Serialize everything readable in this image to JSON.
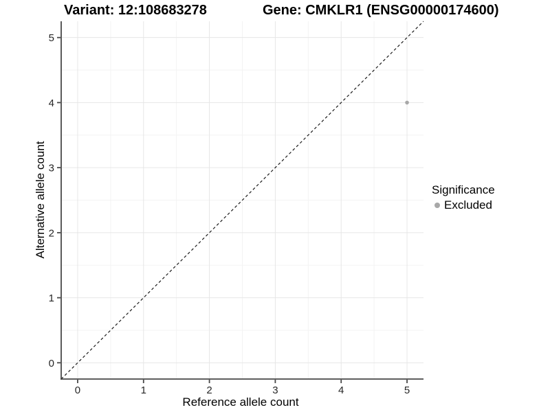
{
  "header": {
    "variant_title": "Variant: 12:108683278",
    "gene_title": "Gene: CMKLR1 (ENSG00000174600)"
  },
  "chart_data": {
    "type": "scatter",
    "xlabel": "Reference allele count",
    "ylabel": "Alternative allele count",
    "xlim": [
      -0.25,
      5.25
    ],
    "ylim": [
      -0.25,
      5.25
    ],
    "xticks": [
      0,
      1,
      2,
      3,
      4,
      5
    ],
    "yticks": [
      0,
      1,
      2,
      3,
      4,
      5
    ],
    "grid": {
      "major": true,
      "minor": true
    },
    "identity_line": {
      "show": true,
      "style": "dashed",
      "equation": "y = x"
    },
    "series": [
      {
        "name": "Excluded",
        "color": "#a8a8a8",
        "points": [
          {
            "x": 5,
            "y": 4
          }
        ]
      }
    ],
    "legend": {
      "title": "Significance",
      "position": "right",
      "entries": [
        {
          "label": "Excluded",
          "color": "#a8a8a8"
        }
      ]
    }
  },
  "colors": {
    "background": "#ffffff",
    "grid_major": "#e6e6e6",
    "grid_minor": "#f3f3f3",
    "axis_line": "#474747",
    "tick_mark": "#474747",
    "tick_label": "#262626",
    "identity_line": "#1a1a1a"
  }
}
